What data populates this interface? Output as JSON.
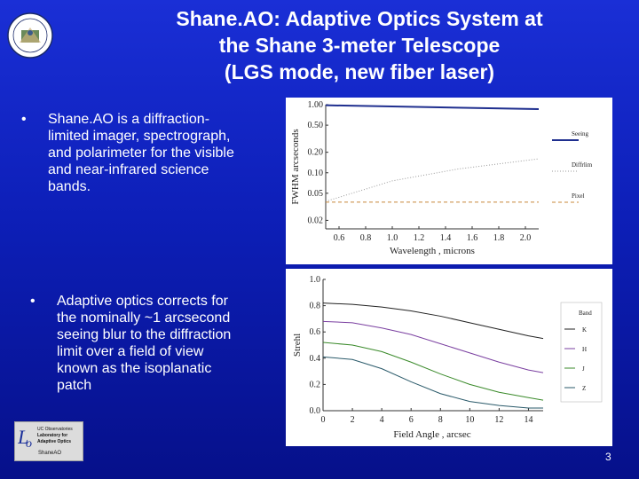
{
  "title": {
    "line1": "Shane.AO: Adaptive Optics System at",
    "line2": "the Shane 3-meter Telescope",
    "line3": "(LGS mode, new fiber laser)"
  },
  "bullets": [
    {
      "marker": "•",
      "lines": [
        "Shane.AO is a diffraction-",
        "limited imager, spectrograph,",
        "and polarimeter for the visible",
        "and near-infrared science",
        "bands."
      ]
    },
    {
      "marker": "•",
      "lines": [
        "Adaptive optics corrects for",
        "the nominally ~1 arcsecond",
        "seeing blur to the diffraction",
        "limit over a field of view",
        "known as the isoplanatic",
        "patch"
      ]
    }
  ],
  "logo": {
    "line1": "UC Observatories",
    "line2": "Laboratory for",
    "line3": "Adaptive Optics",
    "line4": "ShaneAO"
  },
  "page_number": "3",
  "chart_data": [
    {
      "type": "line",
      "xlabel": "Wavelength , microns",
      "ylabel": "FWHM arcseconds",
      "yscale": "log",
      "xlim": [
        0.5,
        2.1
      ],
      "ylim": [
        0.015,
        1.0
      ],
      "x_ticks": [
        "0.6",
        "0.8",
        "1.0",
        "1.2",
        "1.4",
        "1.6",
        "1.8",
        "2.0"
      ],
      "y_ticks": [
        "1.00",
        "0.50",
        "0.20",
        "0.10",
        "0.05",
        "0.02"
      ],
      "legend_position": "right",
      "series": [
        {
          "name": "Seeing",
          "color": "#1f2f8f",
          "style": "solid",
          "x": [
            0.5,
            2.1
          ],
          "y": [
            0.98,
            0.86
          ]
        },
        {
          "name": "Diffrlim",
          "color": "#9a9a9a",
          "style": "dotted",
          "x": [
            0.5,
            1.0,
            1.5,
            2.1
          ],
          "y": [
            0.038,
            0.076,
            0.114,
            0.16
          ]
        },
        {
          "name": "Pixel",
          "color": "#c8883a",
          "style": "dashed",
          "x": [
            0.5,
            2.1
          ],
          "y": [
            0.037,
            0.037
          ]
        }
      ]
    },
    {
      "type": "line",
      "xlabel": "Field Angle , arcsec",
      "ylabel": "Strehl",
      "xlim": [
        0,
        15
      ],
      "ylim": [
        0,
        1.0
      ],
      "x_ticks": [
        "0",
        "2",
        "4",
        "6",
        "8",
        "10",
        "12",
        "14"
      ],
      "y_ticks": [
        "0.0",
        "0.2",
        "0.4",
        "0.6",
        "0.8",
        "1.0"
      ],
      "legend_position": "right",
      "legend_title": "Band",
      "series": [
        {
          "name": "K",
          "color": "#222222",
          "x": [
            0,
            2,
            4,
            6,
            8,
            10,
            12,
            14,
            15
          ],
          "y": [
            0.82,
            0.81,
            0.79,
            0.76,
            0.72,
            0.67,
            0.62,
            0.57,
            0.55
          ]
        },
        {
          "name": "H",
          "color": "#7a3fa0",
          "x": [
            0,
            2,
            4,
            6,
            8,
            10,
            12,
            14,
            15
          ],
          "y": [
            0.68,
            0.67,
            0.63,
            0.58,
            0.51,
            0.44,
            0.37,
            0.31,
            0.29
          ]
        },
        {
          "name": "J",
          "color": "#3a8a2a",
          "x": [
            0,
            2,
            4,
            6,
            8,
            10,
            12,
            14,
            15
          ],
          "y": [
            0.52,
            0.5,
            0.45,
            0.37,
            0.28,
            0.2,
            0.14,
            0.1,
            0.08
          ]
        },
        {
          "name": "Z",
          "color": "#2a5a6a",
          "x": [
            0,
            2,
            4,
            6,
            8,
            10,
            12,
            14,
            15
          ],
          "y": [
            0.41,
            0.39,
            0.32,
            0.22,
            0.13,
            0.07,
            0.04,
            0.02,
            0.02
          ]
        }
      ]
    }
  ]
}
